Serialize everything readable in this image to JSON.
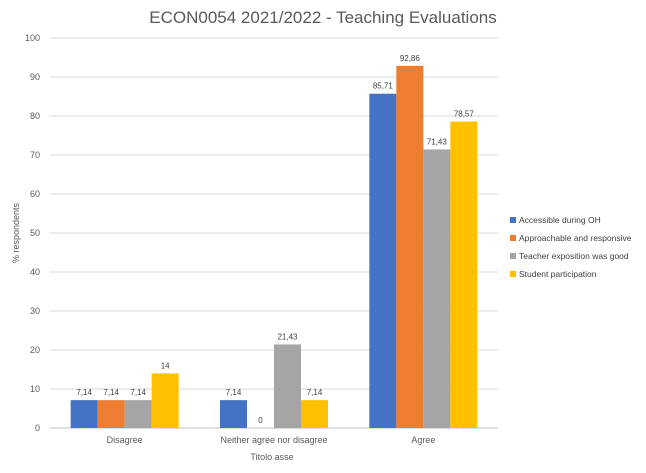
{
  "chart_data": {
    "type": "bar",
    "title": "ECON0054 2021/2022 - Teaching Evaluations",
    "xlabel": "Titolo asse",
    "ylabel": "% respondents",
    "ylim": [
      0,
      100
    ],
    "yticks": [
      0,
      10,
      20,
      30,
      40,
      50,
      60,
      70,
      80,
      90,
      100
    ],
    "grid": true,
    "legend_position": "right",
    "categories": [
      "Disagree",
      "Neither agree nor disagree",
      "Agree"
    ],
    "series": [
      {
        "name": "Accessible during OH",
        "color": "#4472c4",
        "values": [
          7.14,
          7.14,
          85.71
        ],
        "labels": [
          "7,14",
          "7,14",
          "85,71"
        ]
      },
      {
        "name": "Approachable and responsive",
        "color": "#ed7d31",
        "values": [
          7.14,
          0,
          92.86
        ],
        "labels": [
          "7,14",
          "0",
          "92,86"
        ]
      },
      {
        "name": "Teacher exposition was good",
        "color": "#a5a5a5",
        "values": [
          7.14,
          21.43,
          71.43
        ],
        "labels": [
          "7,14",
          "21,43",
          "71,43"
        ]
      },
      {
        "name": "Student participation",
        "color": "#ffc000",
        "values": [
          14,
          7.14,
          78.57
        ],
        "labels": [
          "14",
          "7,14",
          "78,57"
        ]
      }
    ]
  }
}
